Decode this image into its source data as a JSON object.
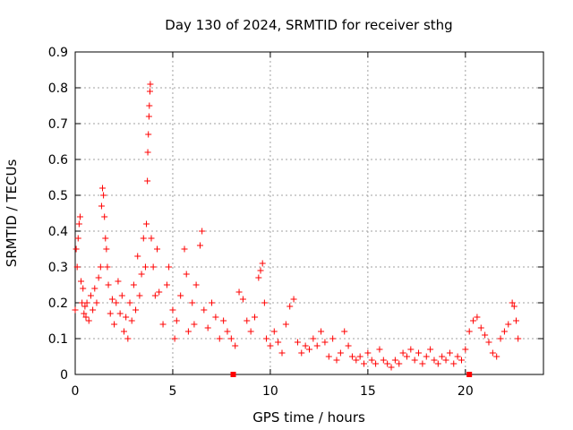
{
  "chart_data": {
    "type": "scatter",
    "title": "Day 130 of 2024, SRMTID for receiver sthg",
    "xlabel": "GPS time / hours",
    "ylabel": "SRMTID / TECUs",
    "xlim": [
      0,
      24
    ],
    "ylim": [
      0,
      0.9
    ],
    "x_ticks": [
      0,
      5,
      10,
      15,
      20
    ],
    "y_ticks": [
      0,
      0.1,
      0.2,
      0.3,
      0.4,
      0.5,
      0.6,
      0.7,
      0.8,
      0.9
    ],
    "grid": true,
    "marker": "+",
    "color": "#ff0000",
    "series": [
      {
        "name": "SRMTID",
        "points": [
          [
            0.0,
            0.18
          ],
          [
            0.05,
            0.35
          ],
          [
            0.1,
            0.3
          ],
          [
            0.15,
            0.38
          ],
          [
            0.2,
            0.42
          ],
          [
            0.25,
            0.44
          ],
          [
            0.3,
            0.26
          ],
          [
            0.35,
            0.2
          ],
          [
            0.4,
            0.24
          ],
          [
            0.45,
            0.17
          ],
          [
            0.5,
            0.19
          ],
          [
            0.55,
            0.16
          ],
          [
            0.6,
            0.2
          ],
          [
            0.7,
            0.15
          ],
          [
            0.8,
            0.22
          ],
          [
            0.9,
            0.18
          ],
          [
            1.0,
            0.24
          ],
          [
            1.1,
            0.2
          ],
          [
            1.2,
            0.27
          ],
          [
            1.3,
            0.3
          ],
          [
            1.35,
            0.47
          ],
          [
            1.4,
            0.52
          ],
          [
            1.45,
            0.5
          ],
          [
            1.5,
            0.44
          ],
          [
            1.55,
            0.38
          ],
          [
            1.6,
            0.35
          ],
          [
            1.65,
            0.3
          ],
          [
            1.7,
            0.25
          ],
          [
            1.8,
            0.17
          ],
          [
            1.9,
            0.21
          ],
          [
            2.0,
            0.14
          ],
          [
            2.1,
            0.2
          ],
          [
            2.2,
            0.26
          ],
          [
            2.3,
            0.17
          ],
          [
            2.4,
            0.22
          ],
          [
            2.5,
            0.12
          ],
          [
            2.6,
            0.16
          ],
          [
            2.7,
            0.1
          ],
          [
            2.8,
            0.2
          ],
          [
            2.9,
            0.15
          ],
          [
            3.0,
            0.25
          ],
          [
            3.1,
            0.18
          ],
          [
            3.2,
            0.33
          ],
          [
            3.3,
            0.22
          ],
          [
            3.4,
            0.28
          ],
          [
            3.5,
            0.38
          ],
          [
            3.6,
            0.3
          ],
          [
            3.65,
            0.42
          ],
          [
            3.7,
            0.54
          ],
          [
            3.72,
            0.62
          ],
          [
            3.75,
            0.67
          ],
          [
            3.78,
            0.72
          ],
          [
            3.8,
            0.75
          ],
          [
            3.83,
            0.79
          ],
          [
            3.85,
            0.81
          ],
          [
            3.9,
            0.38
          ],
          [
            4.0,
            0.3
          ],
          [
            4.1,
            0.22
          ],
          [
            4.2,
            0.35
          ],
          [
            4.3,
            0.23
          ],
          [
            4.5,
            0.14
          ],
          [
            4.7,
            0.25
          ],
          [
            4.8,
            0.3
          ],
          [
            5.0,
            0.18
          ],
          [
            5.1,
            0.1
          ],
          [
            5.2,
            0.15
          ],
          [
            5.4,
            0.22
          ],
          [
            5.6,
            0.35
          ],
          [
            5.7,
            0.28
          ],
          [
            5.8,
            0.12
          ],
          [
            6.0,
            0.2
          ],
          [
            6.1,
            0.14
          ],
          [
            6.2,
            0.25
          ],
          [
            6.4,
            0.36
          ],
          [
            6.5,
            0.4
          ],
          [
            6.6,
            0.18
          ],
          [
            6.8,
            0.13
          ],
          [
            7.0,
            0.2
          ],
          [
            7.2,
            0.16
          ],
          [
            7.4,
            0.1
          ],
          [
            7.6,
            0.15
          ],
          [
            7.8,
            0.12
          ],
          [
            8.0,
            0.1
          ],
          [
            8.2,
            0.08
          ],
          [
            8.4,
            0.23
          ],
          [
            8.6,
            0.21
          ],
          [
            8.8,
            0.15
          ],
          [
            9.0,
            0.12
          ],
          [
            9.2,
            0.16
          ],
          [
            9.4,
            0.27
          ],
          [
            9.5,
            0.29
          ],
          [
            9.6,
            0.31
          ],
          [
            9.7,
            0.2
          ],
          [
            9.8,
            0.1
          ],
          [
            10.0,
            0.08
          ],
          [
            10.2,
            0.12
          ],
          [
            10.4,
            0.09
          ],
          [
            10.6,
            0.06
          ],
          [
            10.8,
            0.14
          ],
          [
            11.0,
            0.19
          ],
          [
            11.2,
            0.21
          ],
          [
            11.4,
            0.09
          ],
          [
            11.6,
            0.06
          ],
          [
            11.8,
            0.08
          ],
          [
            12.0,
            0.07
          ],
          [
            12.2,
            0.1
          ],
          [
            12.4,
            0.08
          ],
          [
            12.6,
            0.12
          ],
          [
            12.8,
            0.09
          ],
          [
            13.0,
            0.05
          ],
          [
            13.2,
            0.1
          ],
          [
            13.4,
            0.04
          ],
          [
            13.6,
            0.06
          ],
          [
            13.8,
            0.12
          ],
          [
            14.0,
            0.08
          ],
          [
            14.2,
            0.05
          ],
          [
            14.4,
            0.04
          ],
          [
            14.6,
            0.05
          ],
          [
            14.8,
            0.03
          ],
          [
            15.0,
            0.06
          ],
          [
            15.2,
            0.04
          ],
          [
            15.4,
            0.03
          ],
          [
            15.6,
            0.07
          ],
          [
            15.8,
            0.04
          ],
          [
            16.0,
            0.03
          ],
          [
            16.2,
            0.02
          ],
          [
            16.4,
            0.04
          ],
          [
            16.6,
            0.03
          ],
          [
            16.8,
            0.06
          ],
          [
            17.0,
            0.05
          ],
          [
            17.2,
            0.07
          ],
          [
            17.4,
            0.04
          ],
          [
            17.6,
            0.06
          ],
          [
            17.8,
            0.03
          ],
          [
            18.0,
            0.05
          ],
          [
            18.2,
            0.07
          ],
          [
            18.4,
            0.04
          ],
          [
            18.6,
            0.03
          ],
          [
            18.8,
            0.05
          ],
          [
            19.0,
            0.04
          ],
          [
            19.2,
            0.06
          ],
          [
            19.4,
            0.03
          ],
          [
            19.6,
            0.05
          ],
          [
            19.8,
            0.04
          ],
          [
            20.0,
            0.07
          ],
          [
            20.2,
            0.12
          ],
          [
            20.4,
            0.15
          ],
          [
            20.6,
            0.16
          ],
          [
            20.8,
            0.13
          ],
          [
            21.0,
            0.11
          ],
          [
            21.2,
            0.09
          ],
          [
            21.4,
            0.06
          ],
          [
            21.6,
            0.05
          ],
          [
            21.8,
            0.1
          ],
          [
            22.0,
            0.12
          ],
          [
            22.2,
            0.14
          ],
          [
            22.4,
            0.2
          ],
          [
            22.5,
            0.19
          ],
          [
            22.6,
            0.15
          ],
          [
            22.7,
            0.1
          ]
        ]
      }
    ],
    "outliers_at_zero": [
      8.1,
      20.2
    ]
  }
}
